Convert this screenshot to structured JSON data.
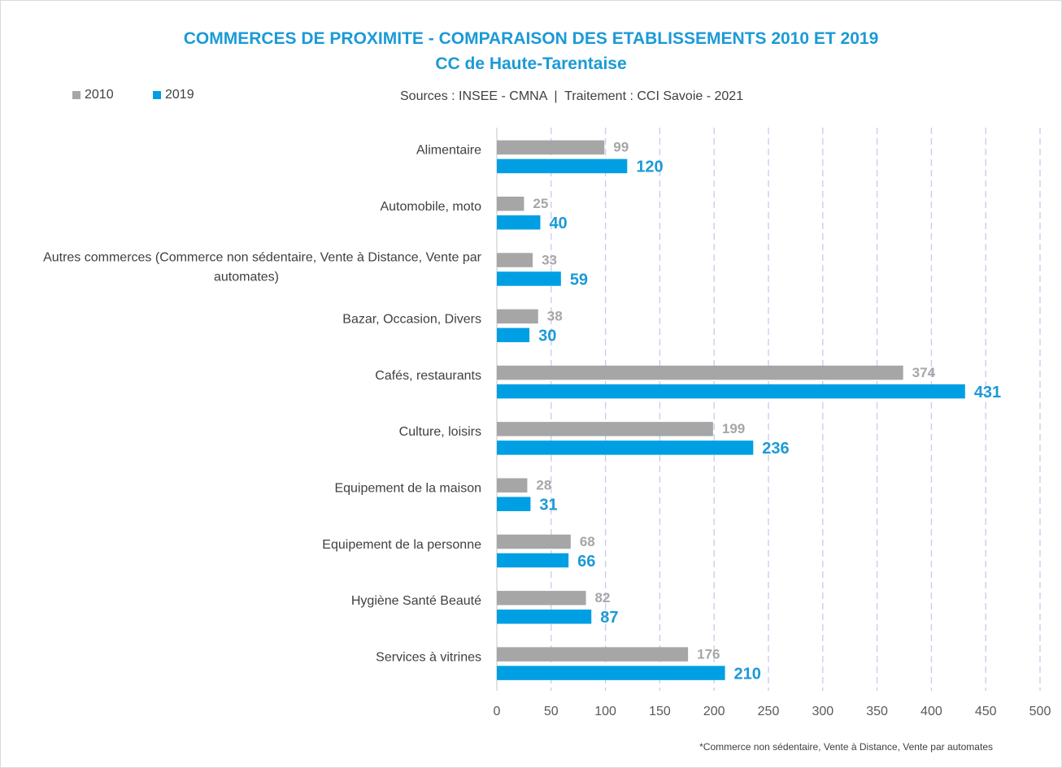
{
  "chart_data": {
    "type": "bar",
    "orientation": "horizontal",
    "title": "COMMERCES DE PROXIMITE - COMPARAISON DES ETABLISSEMENTS 2010 ET 2019",
    "subtitle": "CC de Haute-Tarentaise",
    "source": "Sources : INSEE - CMNA  |  Traitement : CCI Savoie - 2021",
    "footnote": "*Commerce non sédentaire, Vente à Distance, Vente par automates",
    "categories": [
      [
        "Alimentaire"
      ],
      [
        "Automobile, moto"
      ],
      [
        "Autres commerces (Commerce non sédentaire, Vente à Distance, Vente par",
        "automates)"
      ],
      [
        "Bazar, Occasion, Divers"
      ],
      [
        "Cafés, restaurants"
      ],
      [
        "Culture, loisirs"
      ],
      [
        "Equipement de la maison"
      ],
      [
        "Equipement de la personne"
      ],
      [
        "Hygiène Santé Beauté"
      ],
      [
        "Services à vitrines"
      ]
    ],
    "series": [
      {
        "name": "2010",
        "color": "#a6a6a6",
        "label_color": "#a6a6a6",
        "values": [
          99,
          25,
          33,
          38,
          374,
          199,
          28,
          68,
          82,
          176
        ]
      },
      {
        "name": "2019",
        "color": "#009fe3",
        "label_color": "#1b9ad6",
        "values": [
          120,
          40,
          59,
          30,
          431,
          236,
          31,
          66,
          87,
          210
        ]
      }
    ],
    "xlim": [
      0,
      500
    ],
    "xticks": [
      0,
      50,
      100,
      150,
      200,
      250,
      300,
      350,
      400,
      450,
      500
    ],
    "grid": true,
    "legend_position": "top-left"
  }
}
